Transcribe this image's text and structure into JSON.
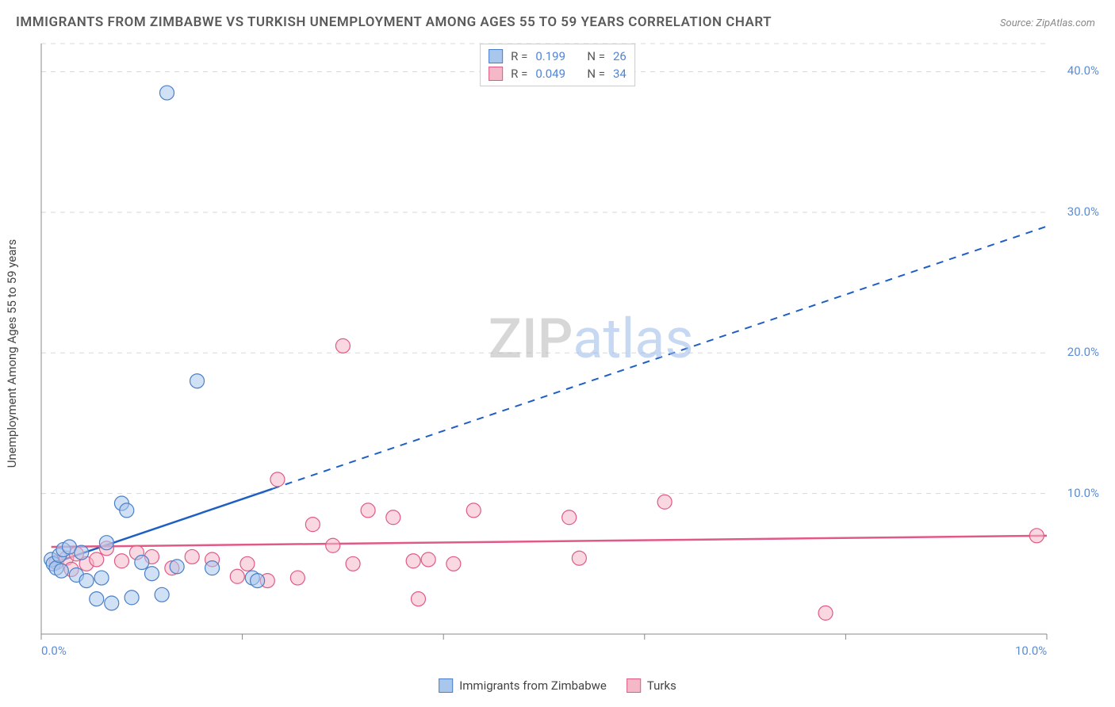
{
  "title": "IMMIGRANTS FROM ZIMBABWE VS TURKISH UNEMPLOYMENT AMONG AGES 55 TO 59 YEARS CORRELATION CHART",
  "source": "Source: ZipAtlas.com",
  "y_axis_label": "Unemployment Among Ages 55 to 59 years",
  "watermark": {
    "part1": "ZIP",
    "part2": "atlas"
  },
  "chart": {
    "type": "scatter",
    "background_color": "#ffffff",
    "grid_color": "#d8d8d8",
    "grid_dash": "6,6",
    "axis_color": "#888888",
    "xlim": [
      0,
      10
    ],
    "ylim": [
      0,
      42
    ],
    "x_ticks": [
      0,
      2,
      4,
      6,
      8,
      10
    ],
    "x_tick_labels_shown": {
      "0": "0.0%",
      "10": "10.0%"
    },
    "y_ticks": [
      10,
      20,
      30,
      40
    ],
    "y_tick_labels": [
      "10.0%",
      "20.0%",
      "30.0%",
      "40.0%"
    ],
    "tick_label_color": "#5b8dd6",
    "tick_label_fontsize": 15,
    "marker_radius": 9,
    "marker_opacity": 0.55,
    "marker_stroke_width": 1.2,
    "series": [
      {
        "name": "Immigrants from Zimbabwe",
        "fill_color": "#a9c7ec",
        "stroke_color": "#4a7fc7",
        "line_color": "#1f5fc4",
        "line_dash_after_x": 2.3,
        "r_value": "0.199",
        "n_value": "26",
        "regression": {
          "x1": 0.1,
          "y1": 5.0,
          "x2": 10.0,
          "y2": 29.0
        },
        "points": [
          [
            0.1,
            5.3
          ],
          [
            0.12,
            5.0
          ],
          [
            0.15,
            4.7
          ],
          [
            0.18,
            5.6
          ],
          [
            0.2,
            4.5
          ],
          [
            0.22,
            6.0
          ],
          [
            0.28,
            6.2
          ],
          [
            0.35,
            4.2
          ],
          [
            0.4,
            5.8
          ],
          [
            0.45,
            3.8
          ],
          [
            0.55,
            2.5
          ],
          [
            0.6,
            4.0
          ],
          [
            0.65,
            6.5
          ],
          [
            0.7,
            2.2
          ],
          [
            0.8,
            9.3
          ],
          [
            0.85,
            8.8
          ],
          [
            0.9,
            2.6
          ],
          [
            1.0,
            5.1
          ],
          [
            1.1,
            4.3
          ],
          [
            1.2,
            2.8
          ],
          [
            1.25,
            38.5
          ],
          [
            1.35,
            4.8
          ],
          [
            1.55,
            18.0
          ],
          [
            1.7,
            4.7
          ],
          [
            2.1,
            4.0
          ],
          [
            2.15,
            3.8
          ]
        ]
      },
      {
        "name": "Turks",
        "fill_color": "#f5b8c8",
        "stroke_color": "#e05a85",
        "line_color": "#e05a85",
        "line_dash_after_x": 10.0,
        "r_value": "0.049",
        "n_value": "34",
        "regression": {
          "x1": 0.1,
          "y1": 6.2,
          "x2": 10.0,
          "y2": 7.0
        },
        "points": [
          [
            0.15,
            5.1
          ],
          [
            0.25,
            5.4
          ],
          [
            0.3,
            4.6
          ],
          [
            0.35,
            5.7
          ],
          [
            0.45,
            5.0
          ],
          [
            0.55,
            5.3
          ],
          [
            0.65,
            6.1
          ],
          [
            0.8,
            5.2
          ],
          [
            0.95,
            5.8
          ],
          [
            1.1,
            5.5
          ],
          [
            1.3,
            4.7
          ],
          [
            1.5,
            5.5
          ],
          [
            1.7,
            5.3
          ],
          [
            1.95,
            4.1
          ],
          [
            2.05,
            5.0
          ],
          [
            2.25,
            3.8
          ],
          [
            2.35,
            11.0
          ],
          [
            2.55,
            4.0
          ],
          [
            2.7,
            7.8
          ],
          [
            2.9,
            6.3
          ],
          [
            3.0,
            20.5
          ],
          [
            3.1,
            5.0
          ],
          [
            3.25,
            8.8
          ],
          [
            3.5,
            8.3
          ],
          [
            3.7,
            5.2
          ],
          [
            3.75,
            2.5
          ],
          [
            3.85,
            5.3
          ],
          [
            4.1,
            5.0
          ],
          [
            4.3,
            8.8
          ],
          [
            5.25,
            8.3
          ],
          [
            5.35,
            5.4
          ],
          [
            6.2,
            9.4
          ],
          [
            7.8,
            1.5
          ],
          [
            9.9,
            7.0
          ]
        ]
      }
    ],
    "legend_top": {
      "r_label": "R  =",
      "n_label": "N  =",
      "stat_color": "#4f86d8",
      "label_color": "#555555"
    },
    "legend_bottom": {
      "items": [
        {
          "label": "Immigrants from Zimbabwe",
          "fill": "#a9c7ec",
          "stroke": "#4a7fc7"
        },
        {
          "label": "Turks",
          "fill": "#f5b8c8",
          "stroke": "#e05a85"
        }
      ]
    }
  }
}
